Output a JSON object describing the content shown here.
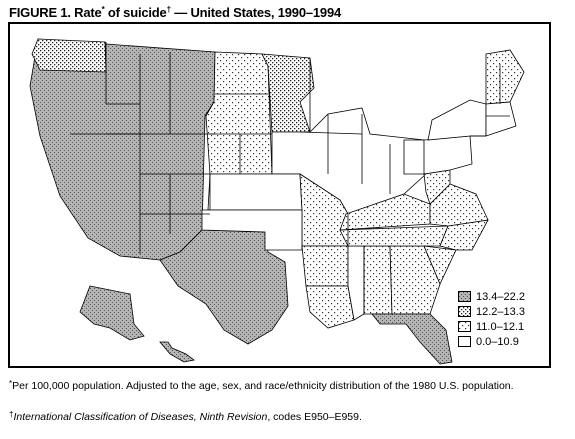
{
  "title": {
    "text_prefix": "FIGURE 1. Rate",
    "star": "*",
    "text_middle": " of suicide",
    "dagger": "†",
    "text_suffix": " — United States, 1990–1994"
  },
  "legend": [
    {
      "label": "13.4–22.2",
      "category": "highest",
      "pattern": "dense-dots"
    },
    {
      "label": "12.2–13.3",
      "category": "high",
      "pattern": "medium-dots"
    },
    {
      "label": "11.0–12.1",
      "category": "mid",
      "pattern": "sparse-dots"
    },
    {
      "label": "0.0–10.9",
      "category": "lowest",
      "pattern": "blank"
    }
  ],
  "footnotes": {
    "star_mark": "*",
    "star_text": "Per 100,000 population. Adjusted to the age, sex, and race/ethnicity distribution of the 1980 U.S. population.",
    "dagger_mark": "†",
    "dagger_italic": "International Classification of Diseases, Ninth Revision",
    "dagger_text": ", codes E950–E959."
  },
  "map": {
    "region_rate_categories": {
      "west": "highest",
      "washington": "high",
      "south_central": "highest",
      "north_central_west": "mid",
      "minnesota": "high",
      "midwest_east": "lowest",
      "kansas": "lowest",
      "missouri": "mid",
      "oklahoma": "lowest",
      "arkansas": "mid",
      "louisiana": "mid",
      "mississippi": "lowest",
      "alabama": "mid",
      "georgia": "mid",
      "florida": "highest",
      "tennessee": "mid",
      "kentucky": "mid",
      "south_carolina": "mid",
      "north_carolina": "mid",
      "virginia": "mid",
      "west_virginia": "mid",
      "ohio": "lowest",
      "pennsylvania": "lowest",
      "new_york": "lowest",
      "new_england_north": "mid",
      "new_england_south": "lowest",
      "alaska": "highest",
      "hawaii": "highest"
    }
  }
}
